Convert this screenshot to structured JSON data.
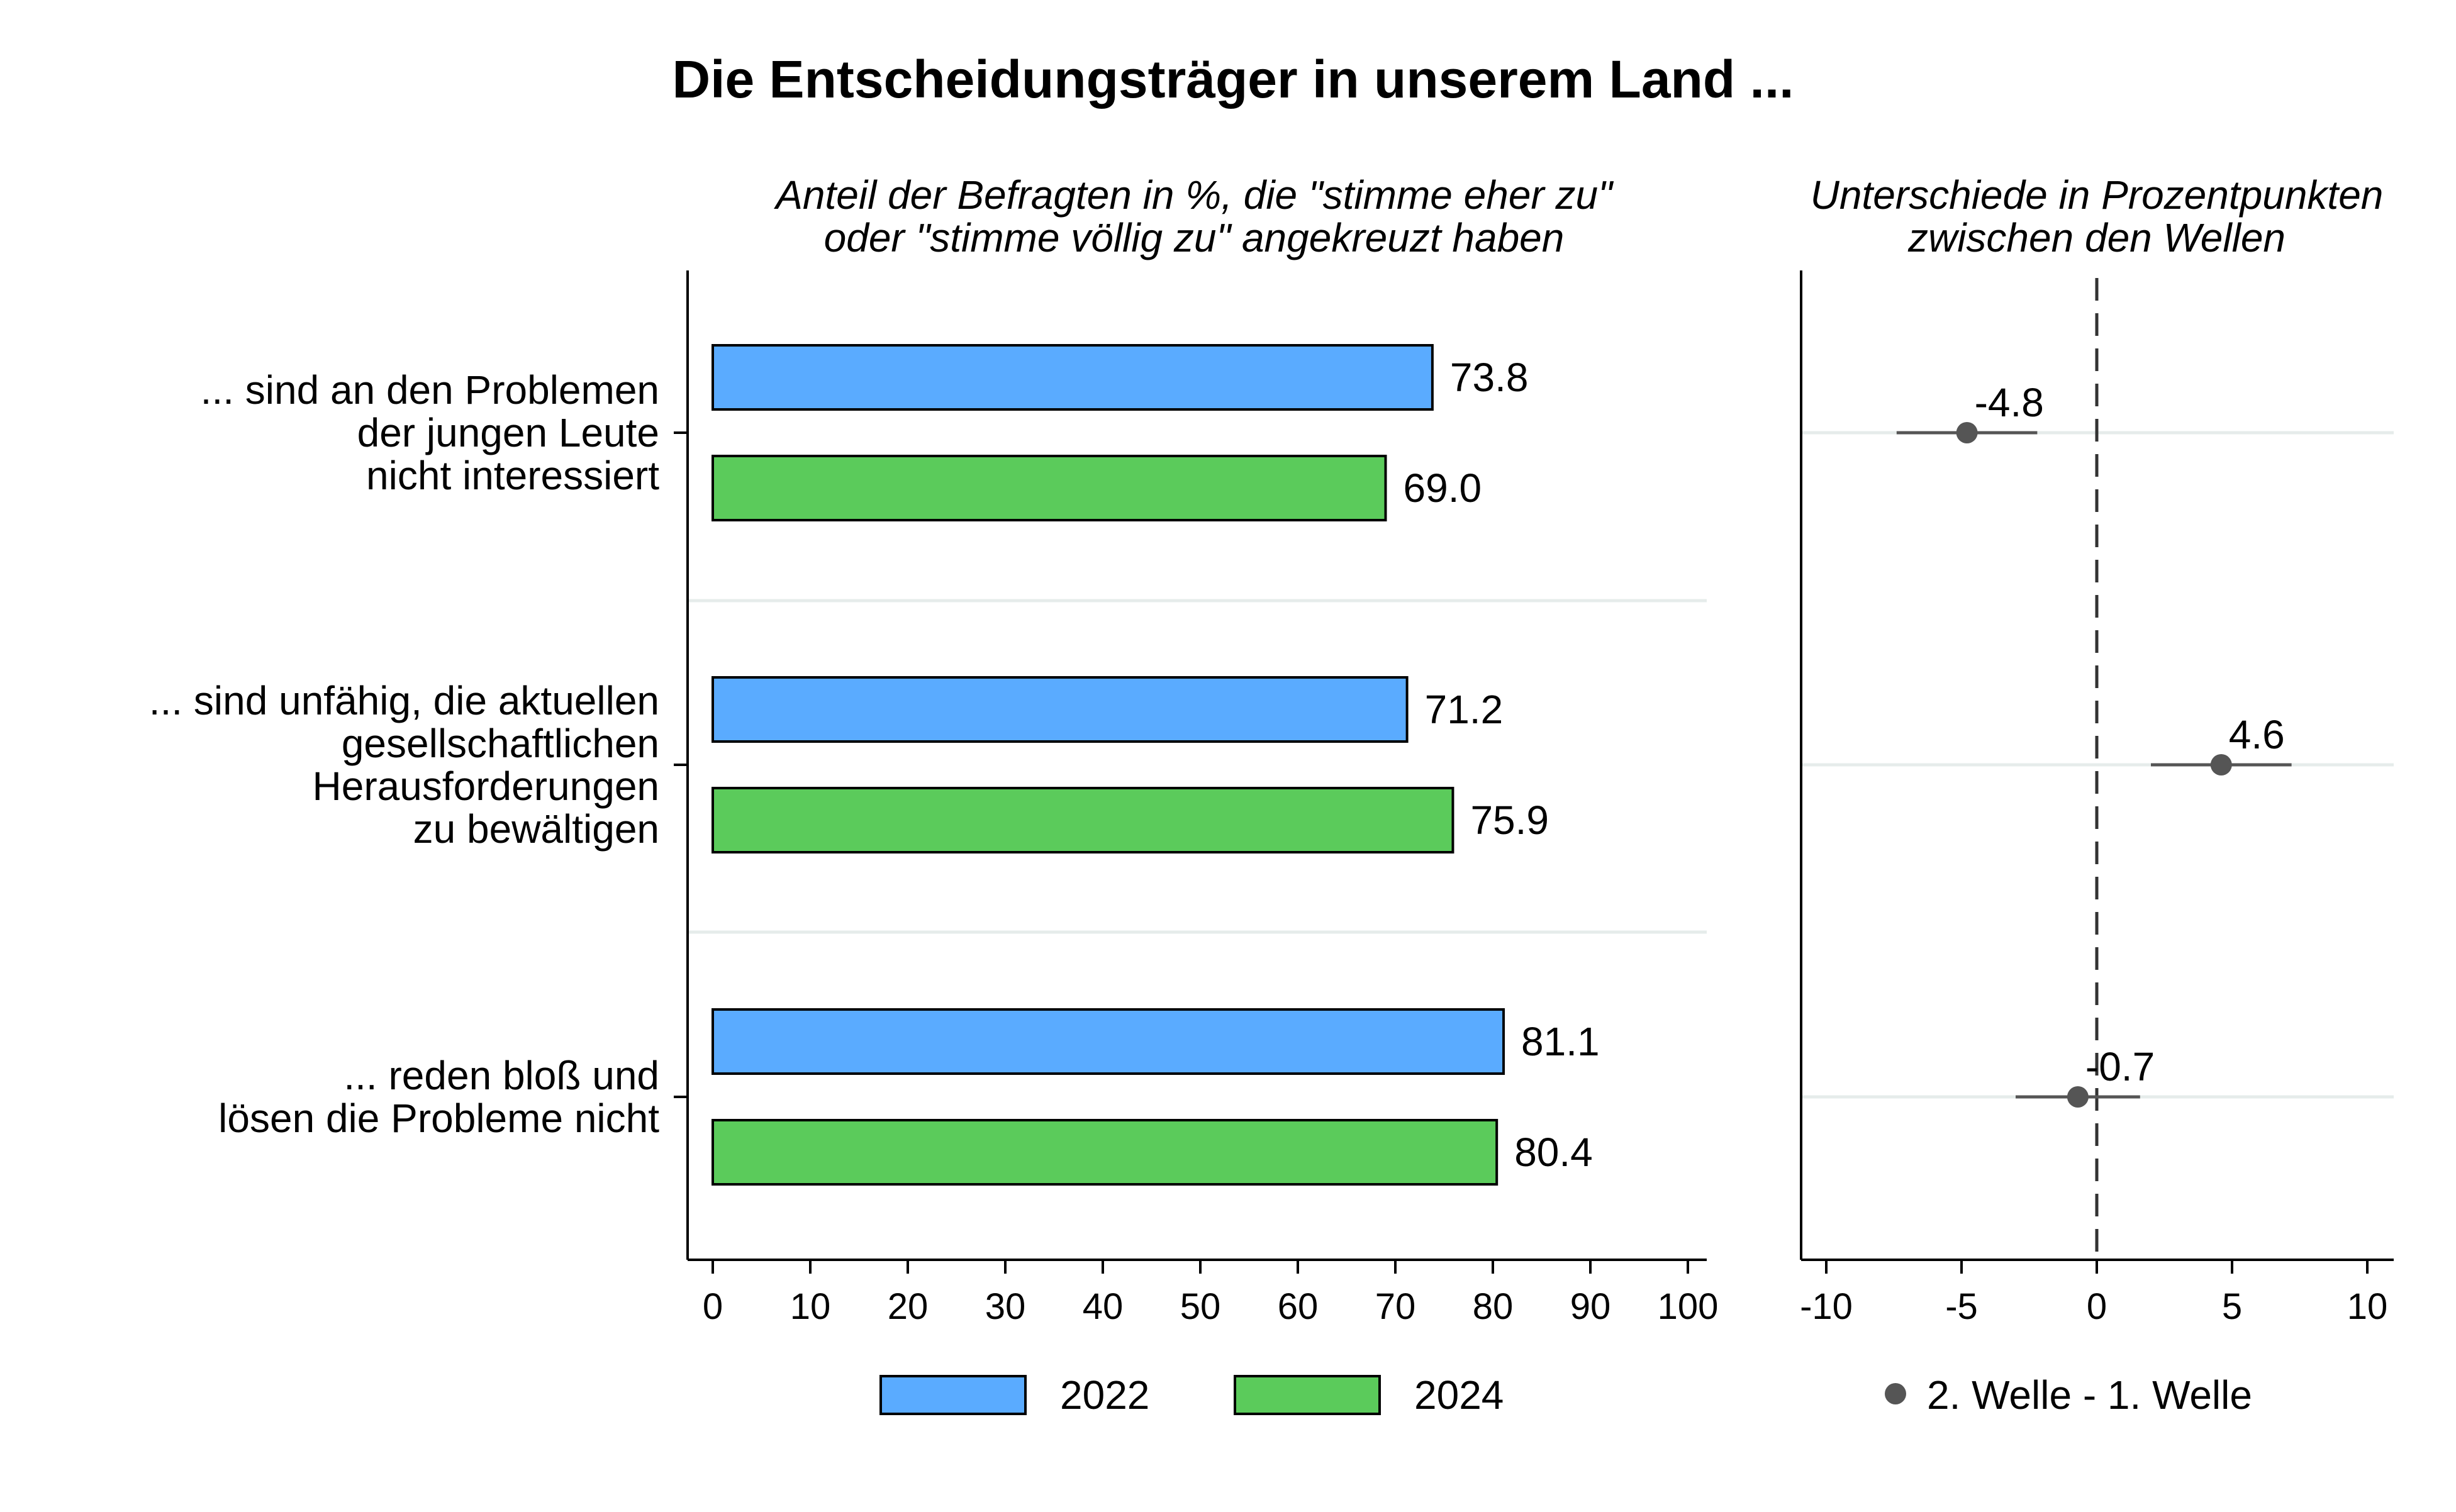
{
  "chart_data": [
    {
      "type": "bar",
      "orientation": "horizontal",
      "title": "Die Entscheidungsträger in unserem Land ...",
      "subtitle": [
        "Anteil der Befragten in %, die \"stimme eher zu\"",
        "oder \"stimme völlig zu\" angekreuzt haben"
      ],
      "categories": [
        [
          "... sind an den Problemen",
          "der jungen Leute",
          "nicht interessiert"
        ],
        [
          "... sind unfähig, die aktuellen",
          "gesellschaftlichen",
          "Herausforderungen",
          "zu bewältigen"
        ],
        [
          "... reden bloß und",
          "lösen die Probleme nicht"
        ]
      ],
      "series": [
        {
          "name": "2022",
          "color": "#5aabff",
          "values": [
            73.8,
            71.2,
            81.1
          ],
          "labels": [
            "73.8",
            "71.2",
            "81.1"
          ]
        },
        {
          "name": "2024",
          "color": "#5bcb5b",
          "values": [
            69.0,
            75.9,
            80.4
          ],
          "labels": [
            "69.0",
            "75.9",
            "80.4"
          ]
        }
      ],
      "xlim": [
        0,
        100
      ],
      "xticks": [
        "0",
        "10",
        "20",
        "30",
        "40",
        "50",
        "60",
        "70",
        "80",
        "90",
        "100"
      ],
      "legend": "bottom"
    },
    {
      "type": "scatter",
      "subtitle": [
        "Unterschiede in Prozentpunkten",
        "zwischen den Wellen"
      ],
      "series": [
        {
          "name": "2. Welle - 1. Welle",
          "color": "#555555",
          "values": [
            -4.8,
            4.6,
            -0.7
          ],
          "labels": [
            "-4.8",
            "4.6",
            "-0.7"
          ],
          "ci": [
            [
              -7.4,
              -2.2
            ],
            [
              2.0,
              7.2
            ],
            [
              -3.0,
              1.6
            ]
          ]
        }
      ],
      "xlim": [
        -10,
        10
      ],
      "xticks": [
        "-10",
        "-5",
        "0",
        "5",
        "10"
      ],
      "reference_line": 0,
      "legend": "bottom"
    }
  ]
}
